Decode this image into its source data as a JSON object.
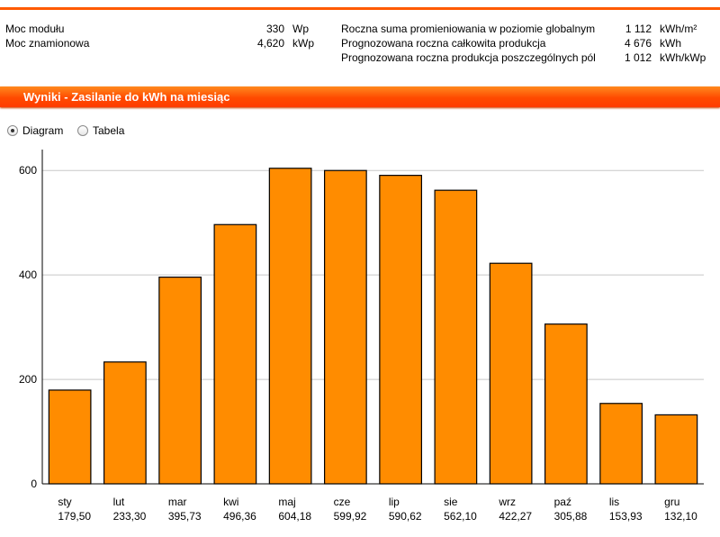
{
  "info": {
    "module_power": {
      "label": "Moc modułu",
      "value": "330",
      "unit": "Wp"
    },
    "rated_power": {
      "label": "Moc znamionowa",
      "value": "4,620",
      "unit": "kWp"
    },
    "irradiation": {
      "label": "Roczna suma promieniowania w poziomie globalnym",
      "value": "1 112",
      "unit": "kWh/m²"
    },
    "total_production": {
      "label": "Prognozowana roczna całkowita produkcja",
      "value": "4 676",
      "unit": "kWh"
    },
    "specific_production": {
      "label": "Prognozowana roczna produkcja poszczególnych pól",
      "value": "1 012",
      "unit": "kWh/kWp"
    }
  },
  "results_title": "Wyniki - Zasilanie do kWh na miesiąc",
  "view_options": {
    "diagram": "Diagram",
    "table": "Tabela",
    "selected": "diagram"
  },
  "colors": {
    "accent": "#ff5a00",
    "bar": "#ff8c00",
    "bar_stroke": "#000000",
    "grid": "#c8c8c8"
  },
  "chart_data": {
    "type": "bar",
    "categories": [
      "sty",
      "lut",
      "mar",
      "kwi",
      "maj",
      "cze",
      "lip",
      "sie",
      "wrz",
      "paź",
      "lis",
      "gru"
    ],
    "values": [
      179.5,
      233.3,
      395.73,
      496.36,
      604.18,
      599.92,
      590.62,
      562.1,
      422.27,
      305.88,
      153.93,
      132.1
    ],
    "value_labels": [
      "179,50",
      "233,30",
      "395,73",
      "496,36",
      "604,18",
      "599,92",
      "590,62",
      "562,10",
      "422,27",
      "305,88",
      "153,93",
      "132,10"
    ],
    "yticks": [
      0,
      200,
      400,
      600
    ],
    "ylim": [
      0,
      640
    ],
    "grid": true
  }
}
